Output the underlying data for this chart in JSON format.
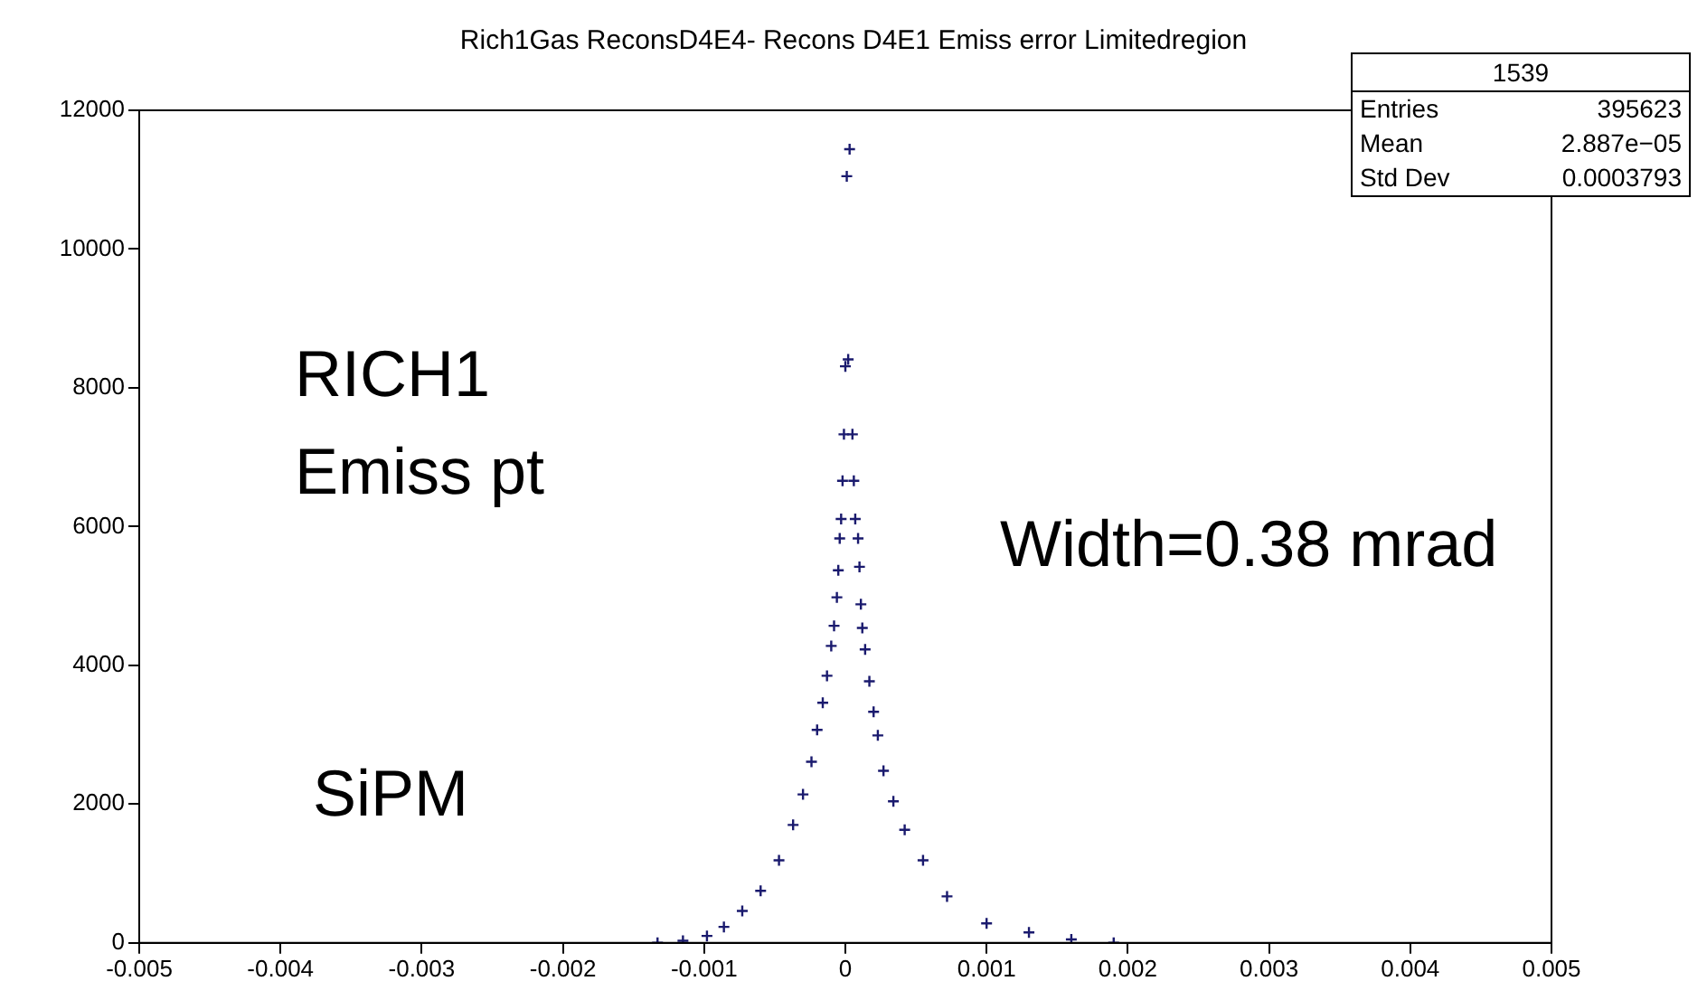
{
  "chart_data": {
    "type": "scatter",
    "title": "Rich1Gas ReconsD4E4- Recons D4E1 Emiss error  Limitedregion",
    "x": [
      -0.00133,
      -0.00115,
      -0.00098,
      -0.00086,
      -0.00073,
      -0.0006,
      -0.00047,
      -0.00037,
      -0.0003,
      -0.00024,
      -0.0002,
      -0.00016,
      -0.00013,
      -0.0001,
      -8e-05,
      -6e-05,
      -5e-05,
      -4e-05,
      -3e-05,
      -2e-05,
      -1e-05,
      0,
      1e-05,
      2e-05,
      3e-05,
      5e-05,
      6e-05,
      7e-05,
      9e-05,
      0.0001,
      0.00011,
      0.00012,
      0.00014,
      0.00017,
      0.0002,
      0.00023,
      0.00027,
      0.00034,
      0.00042,
      0.00055,
      0.00072,
      0.001,
      0.0013,
      0.0016,
      0.0019
    ],
    "values": [
      0,
      30,
      100,
      230,
      460,
      750,
      1190,
      1700,
      2140,
      2610,
      3070,
      3460,
      3850,
      4280,
      4570,
      4980,
      5370,
      5830,
      6110,
      6660,
      7330,
      8310,
      11050,
      8410,
      11440,
      7330,
      6660,
      6110,
      5830,
      5420,
      4880,
      4540,
      4230,
      3770,
      3330,
      2990,
      2480,
      2040,
      1630,
      1190,
      670,
      280,
      150,
      50,
      0
    ],
    "color": "#1a1a6e",
    "marker": "cross",
    "xlim": [
      -0.005,
      0.005
    ],
    "xticks": [
      -0.005,
      -0.004,
      -0.003,
      -0.002,
      -0.001,
      0,
      0.001,
      0.002,
      0.003,
      0.004,
      0.005
    ],
    "ylim": [
      0,
      12000
    ],
    "yticks": [
      0,
      2000,
      4000,
      6000,
      8000,
      10000,
      12000
    ],
    "grid": false,
    "annotations": [
      "1539",
      "Entries 395623",
      "Mean 2.887e−05",
      "Std Dev 0.0003793",
      "RICH1",
      "Emiss pt",
      "Width=0.38 mrad",
      "SiPM"
    ]
  }
}
